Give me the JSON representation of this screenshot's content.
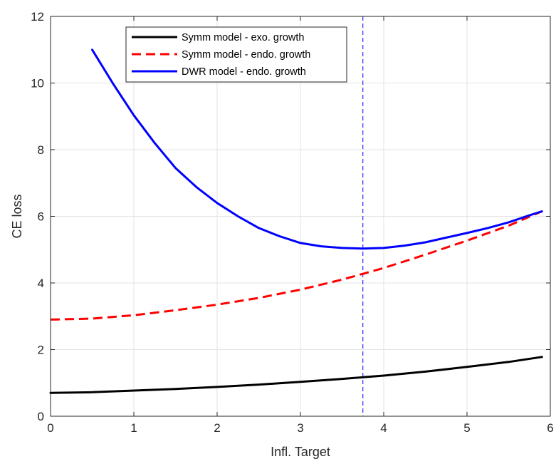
{
  "chart_data": {
    "type": "line",
    "title": "",
    "xlabel": "Infl. Target",
    "ylabel": "CE loss",
    "xlim": [
      0,
      6
    ],
    "ylim": [
      0,
      12
    ],
    "xticks": [
      0,
      1,
      2,
      3,
      4,
      5,
      6
    ],
    "yticks": [
      0,
      2,
      4,
      6,
      8,
      10,
      12
    ],
    "grid": true,
    "legend_position": "top-center",
    "vline": {
      "x": 3.75,
      "color": "#0000ff",
      "style": "dashed"
    },
    "series": [
      {
        "name": "Symm model - exo. growth",
        "color": "#000000",
        "style": "solid",
        "x": [
          0,
          0.5,
          1,
          1.5,
          2,
          2.5,
          3,
          3.5,
          4,
          4.5,
          5,
          5.5,
          5.9
        ],
        "y": [
          0.7,
          0.72,
          0.77,
          0.82,
          0.88,
          0.95,
          1.03,
          1.12,
          1.22,
          1.34,
          1.48,
          1.63,
          1.78
        ]
      },
      {
        "name": "Symm model - endo. growth",
        "color": "#ff0000",
        "style": "dashed",
        "x": [
          0,
          0.5,
          1,
          1.5,
          2,
          2.5,
          3,
          3.5,
          4,
          4.5,
          5,
          5.5,
          5.9
        ],
        "y": [
          2.9,
          2.93,
          3.03,
          3.18,
          3.35,
          3.55,
          3.8,
          4.1,
          4.45,
          4.85,
          5.27,
          5.72,
          6.15
        ]
      },
      {
        "name": "DWR model - endo. growth",
        "color": "#0000ff",
        "style": "solid",
        "x": [
          0.5,
          0.75,
          1,
          1.25,
          1.5,
          1.75,
          2,
          2.25,
          2.5,
          2.75,
          3,
          3.25,
          3.5,
          3.75,
          4,
          4.25,
          4.5,
          4.75,
          5,
          5.25,
          5.5,
          5.75,
          5.9
        ],
        "y": [
          11.0,
          9.98,
          9.03,
          8.2,
          7.45,
          6.88,
          6.4,
          6.0,
          5.65,
          5.4,
          5.2,
          5.1,
          5.05,
          5.03,
          5.05,
          5.12,
          5.22,
          5.36,
          5.5,
          5.65,
          5.82,
          6.03,
          6.15
        ]
      }
    ]
  }
}
